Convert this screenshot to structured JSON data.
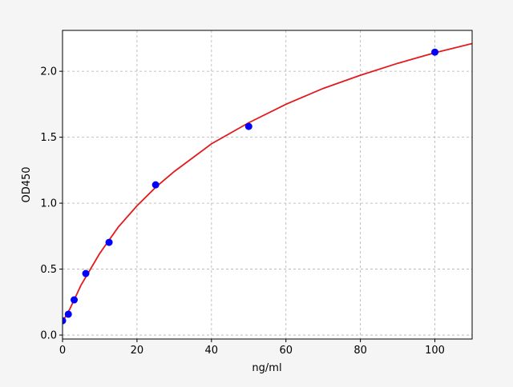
{
  "chart_data": {
    "type": "scatter",
    "title": "",
    "xlabel": "ng/ml",
    "ylabel": "OD450",
    "xlim": [
      0,
      110
    ],
    "ylim": [
      -0.03,
      2.31
    ],
    "xticks": [
      0,
      20,
      40,
      60,
      80,
      100
    ],
    "xtick_labels": [
      "0",
      "20",
      "40",
      "60",
      "80",
      "100"
    ],
    "yticks": [
      0,
      0.5,
      1,
      1.5,
      2
    ],
    "ytick_labels": [
      "0.0",
      "0.5",
      "1.0",
      "1.5",
      "2.0"
    ],
    "grid": true,
    "colors": {
      "points": "#0000ff",
      "curve": "#e31a1c",
      "grid": "#b0b0b0",
      "background": "#f5f5f5"
    },
    "points": {
      "x": [
        0,
        1.5625,
        3.125,
        6.25,
        12.5,
        25,
        50,
        100
      ],
      "y": [
        0.109,
        0.158,
        0.267,
        0.467,
        0.703,
        1.139,
        1.582,
        2.145
      ]
    },
    "curve": {
      "x": [
        0,
        2,
        5,
        10,
        15,
        20,
        25,
        30,
        40,
        50,
        60,
        70,
        80,
        90,
        100,
        110
      ],
      "y": [
        0.1,
        0.2,
        0.38,
        0.62,
        0.82,
        0.98,
        1.12,
        1.24,
        1.45,
        1.61,
        1.75,
        1.87,
        1.97,
        2.06,
        2.14,
        2.21
      ]
    }
  }
}
